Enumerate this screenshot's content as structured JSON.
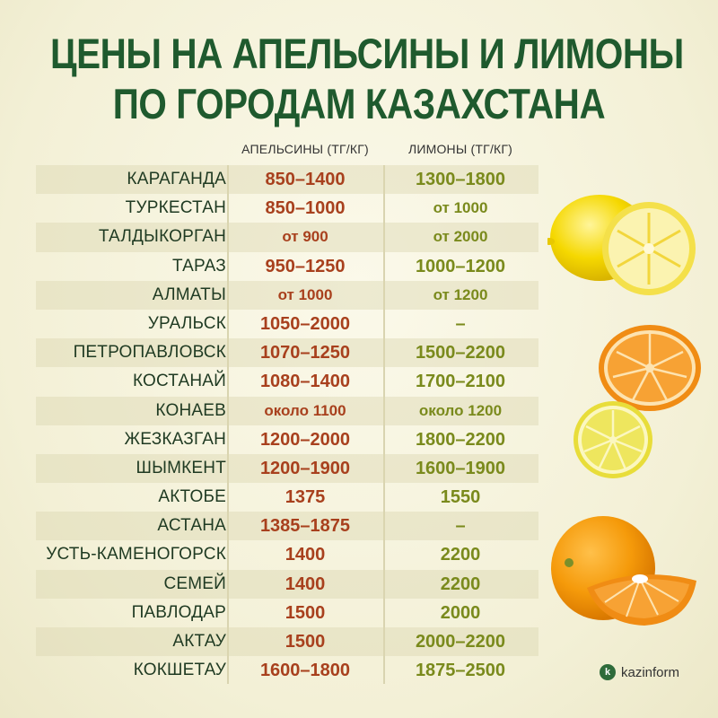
{
  "title": {
    "line1": "ЦЕНЫ НА АПЕЛЬСИНЫ И ЛИМОНЫ",
    "line2": "ПО ГОРОДАМ КАЗАХСТАНА"
  },
  "columns": {
    "oranges": "АПЕЛЬСИНЫ (ТГ/КГ)",
    "lemons": "ЛИМОНЫ (ТГ/КГ)"
  },
  "rows": [
    {
      "city": "КАРАГАНДА",
      "oranges": "850–1400",
      "lemons": "1300–1800"
    },
    {
      "city": "ТУРКЕСТАН",
      "oranges": "850–1000",
      "lemons": "от 1000"
    },
    {
      "city": "ТАЛДЫКОРГАН",
      "oranges": "от 900",
      "lemons": "от 2000"
    },
    {
      "city": "ТАРАЗ",
      "oranges": "950–1250",
      "lemons": "1000–1200"
    },
    {
      "city": "АЛМАТЫ",
      "oranges": "от 1000",
      "lemons": "от 1200"
    },
    {
      "city": "УРАЛЬСК",
      "oranges": "1050–2000",
      "lemons": "–"
    },
    {
      "city": "ПЕТРОПАВЛОВСК",
      "oranges": "1070–1250",
      "lemons": "1500–2200"
    },
    {
      "city": "КОСТАНАЙ",
      "oranges": "1080–1400",
      "lemons": "1700–2100"
    },
    {
      "city": "КОНАЕВ",
      "oranges": "около 1100",
      "lemons": "около 1200"
    },
    {
      "city": "ЖЕЗКАЗГАН",
      "oranges": "1200–2000",
      "lemons": "1800–2200"
    },
    {
      "city": "ШЫМКЕНТ",
      "oranges": "1200–1900",
      "lemons": "1600–1900"
    },
    {
      "city": "АКТОБЕ",
      "oranges": "1375",
      "lemons": "1550"
    },
    {
      "city": "АСТАНА",
      "oranges": "1385–1875",
      "lemons": "–"
    },
    {
      "city": "УСТЬ-КАМЕНОГОРСК",
      "oranges": "1400",
      "lemons": "2200"
    },
    {
      "city": "СЕМЕЙ",
      "oranges": "1400",
      "lemons": "2200"
    },
    {
      "city": "ПАВЛОДАР",
      "oranges": "1500",
      "lemons": "2000"
    },
    {
      "city": "АКТАУ",
      "oranges": "1500",
      "lemons": "2000–2200"
    },
    {
      "city": "КОКШЕТАУ",
      "oranges": "1600–1800",
      "lemons": "1875–2500"
    }
  ],
  "logo": {
    "mark": "k",
    "text": "kazinform"
  },
  "colors": {
    "title": "#1f5a2e",
    "oranges_value": "#a8401d",
    "lemons_value": "#7a8a1c",
    "row_shade": "#e2dcb6"
  },
  "illustrations": [
    "lemon-illustration",
    "orange-slice-illustration",
    "lemon-slice-illustration",
    "orange-illustration"
  ]
}
